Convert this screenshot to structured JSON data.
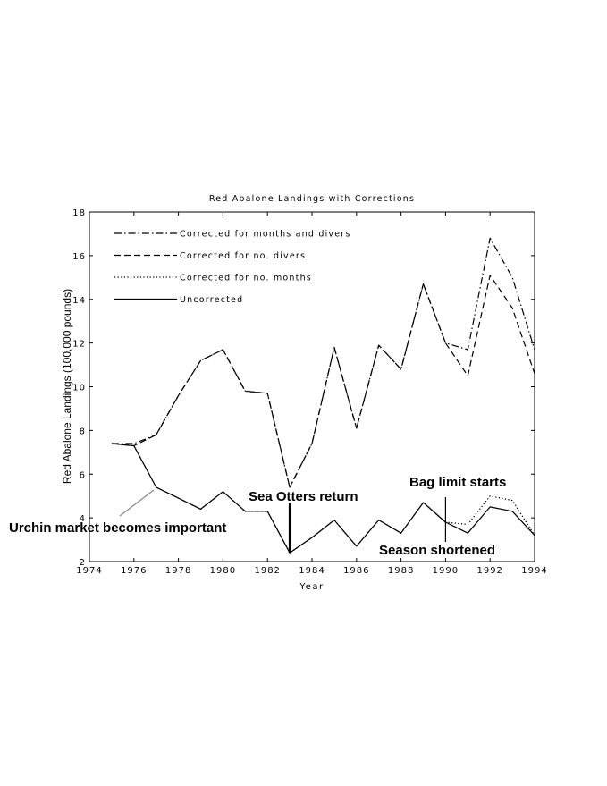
{
  "chart_data": {
    "type": "line",
    "title": "Red Abalone Landings with Corrections",
    "xlabel": "Year",
    "ylabel": "Red Abalone Landings (100,000 pounds)",
    "xlim": [
      1974,
      1994
    ],
    "ylim": [
      2,
      18
    ],
    "xticks": [
      "1974",
      "1976",
      "1978",
      "1980",
      "1982",
      "1984",
      "1986",
      "1988",
      "1990",
      "1992",
      "1994"
    ],
    "yticks": [
      "2",
      "4",
      "6",
      "8",
      "10",
      "12",
      "14",
      "16",
      "18"
    ],
    "grid": false,
    "legend_position": "top-left",
    "series": [
      {
        "name": "Corrected for months and divers",
        "style": "dashdot",
        "x": [
          1975,
          1976,
          1977,
          1978,
          1979,
          1980,
          1981,
          1982,
          1983,
          1984,
          1985,
          1986,
          1987,
          1988,
          1989,
          1990,
          1991,
          1992,
          1993,
          1994
        ],
        "y": [
          7.4,
          7.4,
          7.8,
          9.6,
          11.2,
          11.7,
          9.8,
          9.7,
          5.4,
          7.4,
          11.8,
          8.1,
          11.9,
          10.8,
          14.7,
          12.0,
          11.7,
          16.8,
          15.0,
          11.7
        ]
      },
      {
        "name": "Corrected for no. divers",
        "style": "dashed",
        "x": [
          1975,
          1976,
          1977,
          1978,
          1979,
          1980,
          1981,
          1982,
          1983,
          1984,
          1985,
          1986,
          1987,
          1988,
          1989,
          1990,
          1991,
          1992,
          1993,
          1994
        ],
        "y": [
          7.4,
          7.3,
          7.8,
          9.6,
          11.2,
          11.7,
          9.8,
          9.7,
          5.4,
          7.4,
          11.8,
          8.1,
          11.9,
          10.8,
          14.7,
          12.0,
          10.5,
          15.1,
          13.6,
          10.6
        ]
      },
      {
        "name": "Corrected for no. months",
        "style": "dotted",
        "x": [
          1975,
          1976,
          1977,
          1978,
          1979,
          1980,
          1981,
          1982,
          1983,
          1984,
          1985,
          1986,
          1987,
          1988,
          1989,
          1990,
          1991,
          1992,
          1993,
          1994
        ],
        "y": [
          7.4,
          7.3,
          5.4,
          4.9,
          4.4,
          5.2,
          4.3,
          4.3,
          2.4,
          3.1,
          3.9,
          2.7,
          3.9,
          3.3,
          4.7,
          3.8,
          3.7,
          5.0,
          4.8,
          3.2
        ]
      },
      {
        "name": "Uncorrected",
        "style": "solid",
        "x": [
          1975,
          1976,
          1977,
          1978,
          1979,
          1980,
          1981,
          1982,
          1983,
          1984,
          1985,
          1986,
          1987,
          1988,
          1989,
          1990,
          1991,
          1992,
          1993,
          1994
        ],
        "y": [
          7.4,
          7.3,
          5.4,
          4.9,
          4.4,
          5.2,
          4.3,
          4.3,
          2.4,
          3.1,
          3.9,
          2.7,
          3.9,
          3.3,
          4.7,
          3.8,
          3.3,
          4.5,
          4.3,
          3.2
        ]
      }
    ],
    "annotations": [
      {
        "id": "urchin",
        "text": "Urchin market becomes important",
        "x": 1977,
        "y": 5.4
      },
      {
        "id": "otters",
        "text": "Sea Otters return",
        "x": 1983,
        "y": 2.4
      },
      {
        "id": "bag",
        "text": "Bag limit starts",
        "x": 1990,
        "y": 3.8
      },
      {
        "id": "season",
        "text": "Season shortened",
        "x": 1990,
        "y": 2.4
      }
    ]
  }
}
